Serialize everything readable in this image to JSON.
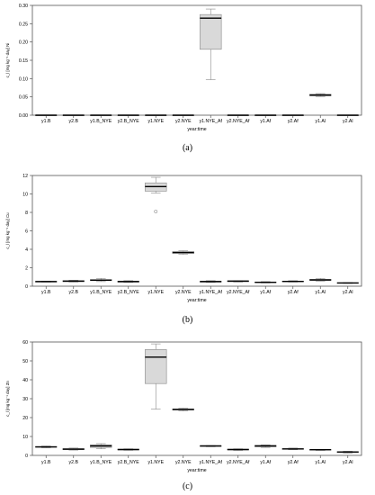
{
  "chart_data": [
    {
      "type": "box",
      "panel_label": "(a)",
      "ylabel": "c_l [mg kg⁻¹ day] Ni",
      "xlabel": "year:time",
      "ylim": [
        0,
        0.3
      ],
      "yticks": [
        "0.00",
        "0.05",
        "0.10",
        "0.15",
        "0.20",
        "0.25",
        "0.30"
      ],
      "ytick_values": [
        0,
        0.05,
        0.1,
        0.15,
        0.2,
        0.25,
        0.3
      ],
      "categories": [
        "y1.B",
        "y2.B",
        "y1.B_NYE",
        "y2.B_NYE",
        "y1.NYE",
        "y2.NYE",
        "y1.NYE_Af",
        "y2.NYE_Af",
        "y1.Af",
        "y2.Af",
        "y1.Al",
        "y2.Al"
      ],
      "boxes": [
        {
          "min": 0,
          "q1": 0,
          "median": 0,
          "q3": 0,
          "max": 0
        },
        {
          "min": 0,
          "q1": 0,
          "median": 0,
          "q3": 0,
          "max": 0
        },
        {
          "min": 0,
          "q1": 0,
          "median": 0,
          "q3": 0,
          "max": 0
        },
        {
          "min": 0,
          "q1": 0,
          "median": 0,
          "q3": 0,
          "max": 0
        },
        {
          "min": 0,
          "q1": 0,
          "median": 0,
          "q3": 0,
          "max": 0
        },
        {
          "min": 0,
          "q1": 0,
          "median": 0,
          "q3": 0,
          "max": 0
        },
        {
          "min": 0.097,
          "q1": 0.18,
          "median": 0.265,
          "q3": 0.275,
          "max": 0.29
        },
        {
          "min": 0,
          "q1": 0,
          "median": 0,
          "q3": 0,
          "max": 0
        },
        {
          "min": 0,
          "q1": 0,
          "median": 0,
          "q3": 0,
          "max": 0
        },
        {
          "min": 0,
          "q1": 0,
          "median": 0,
          "q3": 0,
          "max": 0
        },
        {
          "min": 0.051,
          "q1": 0.053,
          "median": 0.055,
          "q3": 0.057,
          "max": 0.059
        },
        {
          "min": 0,
          "q1": 0,
          "median": 0,
          "q3": 0,
          "max": 0
        }
      ],
      "outliers": []
    },
    {
      "type": "box",
      "panel_label": "(b)",
      "ylabel": "c_l [mg kg⁻¹ day] Cu",
      "xlabel": "year:time",
      "ylim": [
        0,
        12
      ],
      "yticks": [
        "0",
        "2",
        "4",
        "6",
        "8",
        "10",
        "12"
      ],
      "ytick_values": [
        0,
        2,
        4,
        6,
        8,
        10,
        12
      ],
      "categories": [
        "y1.B",
        "y2.B",
        "y1.B_NYE",
        "y2.B_NYE",
        "y1.NYE",
        "y2.NYE",
        "y1.NYE_Af",
        "y2.NYE_Af",
        "y1.Af",
        "y2.Af",
        "y1.Al",
        "y2.Al"
      ],
      "boxes": [
        {
          "min": 0.45,
          "q1": 0.48,
          "median": 0.5,
          "q3": 0.52,
          "max": 0.55
        },
        {
          "min": 0.45,
          "q1": 0.5,
          "median": 0.55,
          "q3": 0.6,
          "max": 0.65
        },
        {
          "min": 0.5,
          "q1": 0.6,
          "median": 0.65,
          "q3": 0.72,
          "max": 0.85
        },
        {
          "min": 0.4,
          "q1": 0.45,
          "median": 0.5,
          "q3": 0.55,
          "max": 0.6
        },
        {
          "min": 10.1,
          "q1": 10.3,
          "median": 10.8,
          "q3": 11.2,
          "max": 11.8
        },
        {
          "min": 3.45,
          "q1": 3.55,
          "median": 3.65,
          "q3": 3.75,
          "max": 3.85
        },
        {
          "min": 0.4,
          "q1": 0.45,
          "median": 0.5,
          "q3": 0.55,
          "max": 0.6
        },
        {
          "min": 0.45,
          "q1": 0.5,
          "median": 0.55,
          "q3": 0.58,
          "max": 0.6
        },
        {
          "min": 0.35,
          "q1": 0.4,
          "median": 0.42,
          "q3": 0.45,
          "max": 0.5
        },
        {
          "min": 0.45,
          "q1": 0.5,
          "median": 0.52,
          "q3": 0.55,
          "max": 0.6
        },
        {
          "min": 0.55,
          "q1": 0.62,
          "median": 0.68,
          "q3": 0.75,
          "max": 0.85
        },
        {
          "min": 0.3,
          "q1": 0.32,
          "median": 0.35,
          "q3": 0.38,
          "max": 0.4
        }
      ],
      "outliers": [
        {
          "category": "y1.NYE",
          "value": 8.1
        }
      ]
    },
    {
      "type": "box",
      "panel_label": "(c)",
      "ylabel": "c_l [mg kg⁻¹ day] Zn",
      "xlabel": "year:time",
      "ylim": [
        0,
        60
      ],
      "yticks": [
        "0",
        "10",
        "20",
        "30",
        "40",
        "50",
        "60"
      ],
      "ytick_values": [
        0,
        10,
        20,
        30,
        40,
        50,
        60
      ],
      "categories": [
        "y1.B",
        "y2.B",
        "y1.B_NYE",
        "y2.B_NYE",
        "y1.NYE",
        "y2.NYE",
        "y1.NYE_Af",
        "y2.NYE_Af",
        "y1.Af",
        "y2.Af",
        "y1.Al",
        "y2.Al"
      ],
      "boxes": [
        {
          "min": 4.0,
          "q1": 4.3,
          "median": 4.5,
          "q3": 4.7,
          "max": 5.0
        },
        {
          "min": 2.8,
          "q1": 3.0,
          "median": 3.3,
          "q3": 3.6,
          "max": 3.9
        },
        {
          "min": 3.5,
          "q1": 4.2,
          "median": 5.0,
          "q3": 5.6,
          "max": 6.2
        },
        {
          "min": 2.7,
          "q1": 2.9,
          "median": 3.1,
          "q3": 3.3,
          "max": 3.5
        },
        {
          "min": 24.5,
          "q1": 38.0,
          "median": 52.0,
          "q3": 56.0,
          "max": 59.0
        },
        {
          "min": 23.5,
          "q1": 24.0,
          "median": 24.3,
          "q3": 24.6,
          "max": 25.0
        },
        {
          "min": 4.6,
          "q1": 4.8,
          "median": 5.0,
          "q3": 5.1,
          "max": 5.2
        },
        {
          "min": 2.6,
          "q1": 2.9,
          "median": 3.1,
          "q3": 3.3,
          "max": 3.5
        },
        {
          "min": 4.2,
          "q1": 4.6,
          "median": 5.0,
          "q3": 5.3,
          "max": 5.6
        },
        {
          "min": 3.0,
          "q1": 3.2,
          "median": 3.4,
          "q3": 3.6,
          "max": 3.9
        },
        {
          "min": 2.6,
          "q1": 2.8,
          "median": 3.0,
          "q3": 3.1,
          "max": 3.2
        },
        {
          "min": 1.2,
          "q1": 1.5,
          "median": 1.8,
          "q3": 2.0,
          "max": 2.2
        }
      ],
      "outliers": []
    }
  ],
  "style": {
    "box_fill": "#d9d9d9",
    "line_color": "#000000",
    "frame_color": "#555555",
    "whisker_color": "#888888"
  }
}
